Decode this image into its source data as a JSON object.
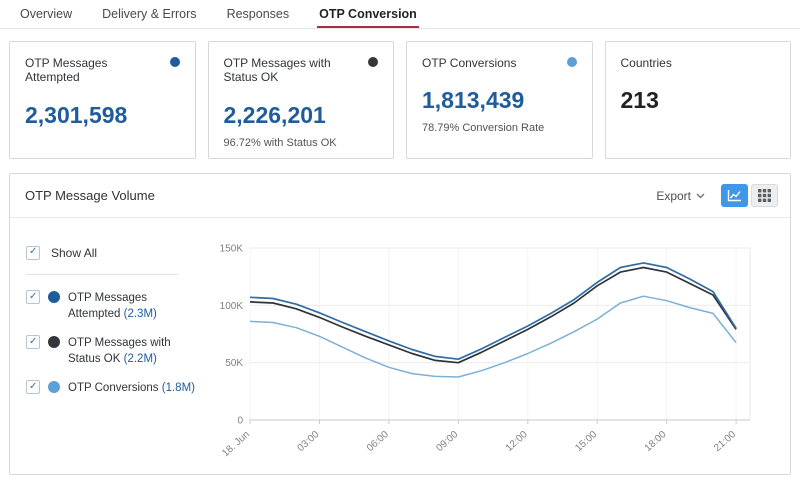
{
  "tabs": [
    {
      "label": "Overview",
      "active": false
    },
    {
      "label": "Delivery & Errors",
      "active": false
    },
    {
      "label": "Responses",
      "active": false
    },
    {
      "label": "OTP Conversion",
      "active": true
    }
  ],
  "cards": [
    {
      "title": "OTP Messages Attempted",
      "value": "2,301,598",
      "subtitle": "",
      "dot_color": "#1e5c9b"
    },
    {
      "title": "OTP Messages with Status OK",
      "value": "2,226,201",
      "subtitle": "96.72% with Status OK",
      "dot_color": "#33373b"
    },
    {
      "title": "OTP Conversions",
      "value": "1,813,439",
      "subtitle": "78.79% Conversion Rate",
      "dot_color": "#5ba0d7"
    },
    {
      "title": "Countries",
      "value": "213",
      "subtitle": ""
    }
  ],
  "panel": {
    "title": "OTP Message Volume",
    "export_label": "Export",
    "legend": {
      "show_all_label": "Show All",
      "items": [
        {
          "label": "OTP Messages Attempted",
          "count": "(2.3M)",
          "color": "#1e5c9b",
          "checked": true
        },
        {
          "label": "OTP Messages with Status OK",
          "count": "(2.2M)",
          "color": "#33373b",
          "checked": true
        },
        {
          "label": "OTP Conversions",
          "count": "(1.8M)",
          "color": "#5ba0d7",
          "checked": true
        }
      ]
    }
  },
  "colors": {
    "accent_blue": "#1e5c9b",
    "active_tab_underline": "#a53241",
    "active_toggle_bg": "#3e97e8",
    "axis_text": "#808080",
    "gridline": "#ebebeb"
  },
  "chart_data": {
    "type": "line",
    "title": "OTP Message Volume",
    "x_unit": "hour of 18. Jun",
    "x_hours": [
      0,
      1,
      2,
      3,
      4,
      5,
      6,
      7,
      8,
      9,
      10,
      11,
      12,
      13,
      14,
      15,
      16,
      17,
      18,
      19,
      20,
      21
    ],
    "x_tick_hours": [
      0,
      3,
      6,
      9,
      12,
      15,
      18,
      21
    ],
    "x_tick_labels": [
      "18. Jun",
      "03:00",
      "06:00",
      "09:00",
      "12:00",
      "15:00",
      "18:00",
      "21:00"
    ],
    "y_ticks_k": [
      0,
      50,
      100,
      150
    ],
    "ylim_k": [
      0,
      150
    ],
    "grid": true,
    "legend_position": "left",
    "series": [
      {
        "name": "OTP Messages Attempted",
        "color": "#306da6",
        "values_k": [
          107,
          106,
          101,
          93.5,
          85,
          77,
          69,
          61.5,
          55.5,
          53,
          62,
          72,
          82,
          93,
          105,
          120,
          133,
          137,
          133,
          123,
          112,
          80
        ]
      },
      {
        "name": "OTP Messages with Status OK",
        "color": "#2e3338",
        "values_k": [
          103,
          102,
          97,
          89.5,
          81,
          73,
          65.5,
          58,
          52,
          50,
          59,
          69,
          79,
          90,
          102,
          117,
          129,
          133,
          129,
          119,
          109,
          79
        ]
      },
      {
        "name": "OTP Conversions",
        "color": "#7db0d5",
        "values_k": [
          86,
          85,
          80.5,
          73,
          63.5,
          54,
          46,
          40.5,
          38,
          37.5,
          43,
          50,
          58,
          67,
          77,
          88,
          102,
          108,
          104,
          98,
          93,
          67.5
        ]
      }
    ]
  }
}
